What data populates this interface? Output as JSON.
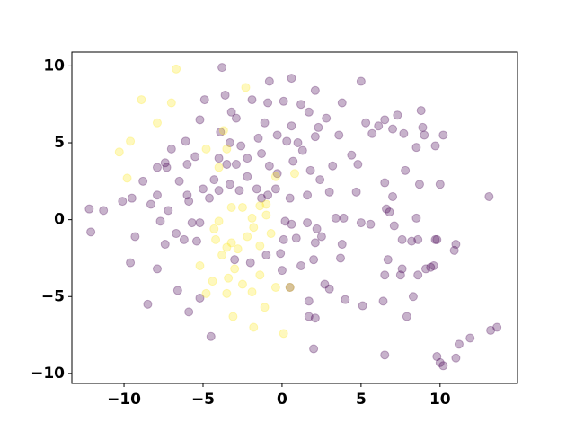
{
  "chart_data": {
    "type": "scatter",
    "xlim": [
      -13.3,
      14.9
    ],
    "ylim": [
      -10.65,
      10.9
    ],
    "xticks": [
      {
        "value": -10,
        "label": "−10"
      },
      {
        "value": -5,
        "label": "−5"
      },
      0,
      5,
      10
    ],
    "yticks": [
      {
        "value": -10,
        "label": "−10"
      },
      {
        "value": -5,
        "label": "−5"
      },
      0,
      5,
      10
    ],
    "series": [
      {
        "color": "#440154",
        "x": [
          -3.8,
          -5.2,
          -12.1,
          -11.3,
          -7.9,
          -6.0,
          -5.9,
          6.5,
          13.1,
          9.0,
          10.0,
          11.9,
          13.2,
          -1.3,
          2.7,
          -12.2,
          -9.3,
          -9.6,
          -8.5,
          -7.9,
          -7.4,
          -6.7,
          -6.2,
          -5.4,
          -5.2,
          -7.2,
          -7.7,
          -8.3,
          -8.8,
          -7.9,
          -7.3,
          -6.5,
          -5.9,
          -5.7,
          -5.0,
          -4.6,
          -4.3,
          -4.0,
          -3.3,
          -2.7,
          -2.2,
          -1.6,
          -0.9,
          -0.4,
          -3.5,
          -2.9,
          -2.2,
          -1.3,
          -0.8,
          -0.3,
          0.7,
          1.3,
          1.8,
          2.4,
          3.0,
          1.6,
          0.5,
          0.2,
          0.6,
          1.6,
          2.2,
          2.5,
          3.4,
          3.9,
          5.0,
          5.6,
          6.6,
          6.8,
          7.1,
          7.6,
          8.2,
          8.6,
          9.8,
          10.9,
          9.6,
          9.4,
          9.1,
          8.6,
          7.6,
          7.5,
          6.7,
          6.5,
          8.3,
          6.4,
          5.1,
          4.0,
          3.0,
          1.7,
          0.5,
          0.0,
          1.2,
          2.0,
          3.7,
          3.8,
          2.1,
          0.9,
          0.1,
          -0.1,
          -1.0,
          -2.0,
          -3.0,
          -6.6,
          -5.2,
          -4.5,
          1.7,
          2.1,
          2.0,
          7.9,
          9.8,
          10.2,
          11.0,
          11.2,
          13.6,
          11.0,
          9.7,
          8.5,
          7.0,
          6.5,
          4.7,
          3.2,
          4.4,
          5.7,
          6.5,
          7.3,
          8.8,
          8.5,
          9.7,
          10.2,
          8.9,
          7.7,
          7.0,
          6.1,
          5.3,
          4.8,
          3.6,
          2.8,
          2.3,
          1.7,
          1.2,
          0.6,
          -0.8,
          0.1,
          -0.9,
          -1.9,
          -3.2,
          -3.6,
          -4.9,
          -3.9,
          -3.3,
          -2.6,
          -1.5,
          -0.3,
          0.3,
          1.0,
          2.1,
          -4.0,
          -5.5,
          -6.1,
          -7.0,
          -6.0,
          -7.4,
          2.1,
          5.0,
          3.8,
          7.8,
          8.7,
          10.0,
          -9.5,
          -10.1,
          -2.9,
          -1.1,
          0.6
        ],
        "values": [
          9.9,
          6.5,
          -0.8,
          0.6,
          1.6,
          1.6,
          -6.0,
          -8.8,
          1.5,
          5.5,
          -9.3,
          -7.7,
          -7.2,
          1.4,
          -4.2,
          0.7,
          -1.1,
          -2.8,
          -5.5,
          -3.2,
          -1.6,
          -0.9,
          -1.3,
          -1.4,
          -0.2,
          0.6,
          -0.1,
          1.0,
          2.5,
          3.4,
          3.4,
          2.5,
          1.2,
          -0.2,
          2.0,
          1.4,
          2.6,
          1.9,
          2.3,
          1.9,
          2.8,
          2.0,
          1.6,
          2.0,
          3.6,
          3.6,
          4.0,
          4.3,
          3.5,
          3.0,
          3.8,
          4.5,
          3.2,
          2.6,
          1.8,
          1.6,
          1.4,
          -0.1,
          -0.3,
          -0.2,
          -0.6,
          -1.1,
          0.1,
          0.1,
          -0.2,
          -0.3,
          0.7,
          0.5,
          -0.4,
          -1.3,
          -1.4,
          -1.3,
          -1.3,
          -2.0,
          -3.0,
          -3.1,
          -3.2,
          -3.6,
          -3.2,
          -3.6,
          -2.6,
          -3.6,
          -5.0,
          -5.3,
          -5.6,
          -5.2,
          -4.5,
          -5.3,
          -4.4,
          -3.3,
          -3.0,
          -2.6,
          -2.5,
          -1.6,
          -1.5,
          -1.2,
          -1.3,
          -2.2,
          -2.3,
          -2.8,
          -2.6,
          -4.6,
          -5.1,
          -7.6,
          -6.3,
          -6.4,
          -8.4,
          -6.3,
          -8.9,
          -9.5,
          -9.0,
          -8.1,
          -7.0,
          -1.6,
          -1.3,
          0.1,
          1.5,
          2.4,
          1.8,
          3.5,
          4.2,
          5.6,
          6.5,
          6.8,
          7.1,
          4.7,
          4.8,
          5.5,
          6.0,
          5.6,
          5.9,
          6.1,
          6.3,
          3.6,
          5.5,
          6.6,
          6.0,
          7.0,
          7.5,
          9.2,
          9.0,
          7.7,
          7.6,
          7.8,
          7.0,
          8.1,
          7.8,
          5.7,
          5.0,
          4.8,
          5.3,
          5.5,
          5.1,
          5.0,
          5.4,
          4.0,
          4.1,
          5.1,
          4.6,
          3.6,
          3.7,
          8.4,
          9.0,
          7.6,
          3.2,
          2.3,
          2.3,
          1.4,
          1.2,
          6.6,
          6.3,
          6.1
        ]
      },
      {
        "color": "#fde725",
        "x": [
          -6.7,
          -8.9,
          -7.0,
          -7.9,
          -9.6,
          -10.3,
          -9.8,
          -3.7,
          -2.3,
          -4.8,
          -4.0,
          -3.5,
          -0.4,
          0.8,
          -3.2,
          -2.5,
          -1.4,
          -1.0,
          -4.0,
          -4.3,
          -3.2,
          -1.8,
          -0.7,
          -1.4,
          -2.2,
          -2.8,
          -3.8,
          -5.2,
          -4.4,
          -3.4,
          -3.0,
          -2.5,
          -1.4,
          -0.4,
          0.5,
          -1.9,
          -3.5,
          -4.8,
          -1.1,
          -3.1,
          -1.8,
          0.1,
          -1.0,
          -1.9,
          -3.5,
          -4.2
        ],
        "values": [
          9.8,
          7.8,
          7.6,
          6.3,
          5.1,
          4.4,
          2.7,
          5.8,
          8.6,
          4.6,
          3.4,
          4.6,
          2.8,
          3.0,
          0.8,
          0.8,
          0.9,
          0.3,
          -0.1,
          -0.6,
          -1.5,
          -0.5,
          -0.9,
          -1.7,
          -1.1,
          -1.9,
          -2.3,
          -3.0,
          -4.0,
          -3.8,
          -3.2,
          -4.2,
          -3.6,
          -4.4,
          -4.4,
          -4.7,
          -4.8,
          -4.8,
          -5.7,
          -6.3,
          -7.0,
          -7.4,
          1.0,
          0.1,
          -1.8,
          -1.3
        ]
      }
    ]
  }
}
